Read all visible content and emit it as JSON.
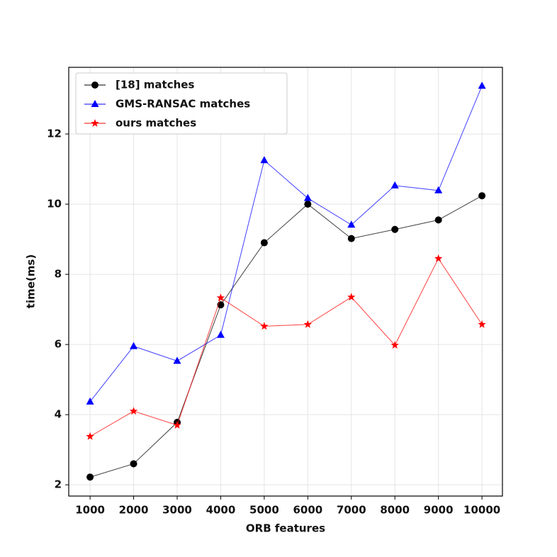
{
  "chart_data": {
    "type": "line",
    "x": [
      1000,
      2000,
      3000,
      4000,
      5000,
      6000,
      7000,
      8000,
      9000,
      10000
    ],
    "series": [
      {
        "name": "[18] matches",
        "color": "#000000",
        "marker": "circle",
        "values": [
          2.22,
          2.6,
          3.78,
          7.13,
          8.9,
          10.0,
          9.02,
          9.28,
          9.55,
          10.24
        ]
      },
      {
        "name": "GMS-RANSAC matches",
        "color": "#0000ff",
        "marker": "triangle",
        "values": [
          4.37,
          5.95,
          5.53,
          6.27,
          11.25,
          10.17,
          9.41,
          10.53,
          10.39,
          13.37
        ]
      },
      {
        "name": "ours matches",
        "color": "#ff0000",
        "marker": "star",
        "values": [
          3.38,
          4.1,
          3.7,
          7.33,
          6.52,
          6.57,
          7.35,
          5.98,
          8.45,
          6.57
        ]
      }
    ],
    "xlabel": "ORB features",
    "ylabel": "time(ms)",
    "xlim": [
      510,
      10470
    ],
    "ylim": [
      1.68,
      13.9
    ],
    "xticks": [
      1000,
      2000,
      3000,
      4000,
      5000,
      6000,
      7000,
      8000,
      9000,
      10000
    ],
    "yticks": [
      2,
      4,
      6,
      8,
      10,
      12
    ],
    "grid": true,
    "legend": "upper left"
  }
}
